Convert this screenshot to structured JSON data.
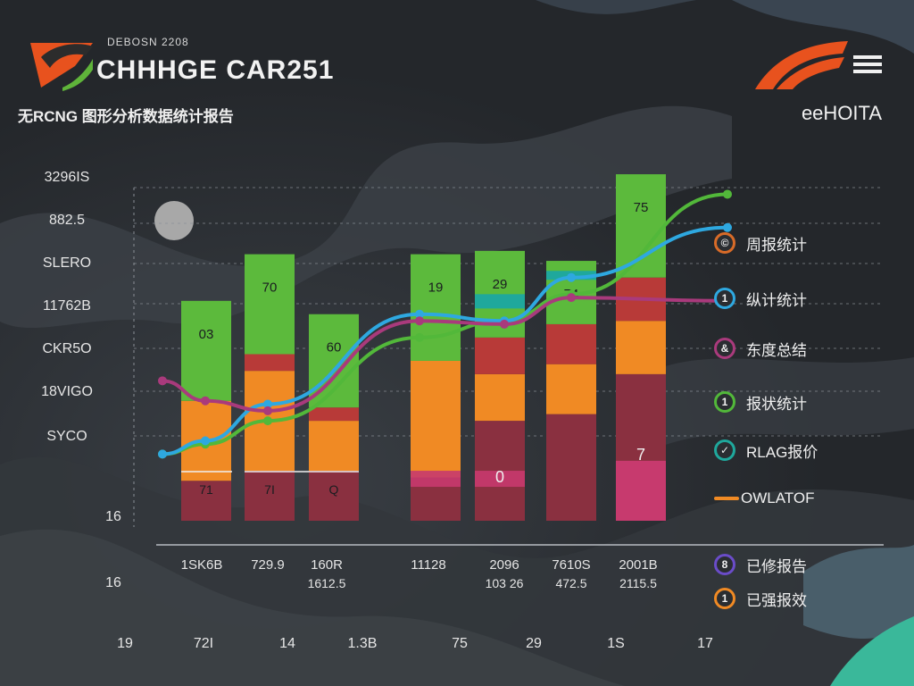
{
  "header": {
    "subheading": "DEBOSN 2208",
    "title": "CHHHGE CAR251",
    "subtitle": "无RCNG 图形分析数据统计报告",
    "brand_right": "eeHOITA",
    "logo_icon": "swoosh-logo-icon",
    "menu_icon": "hamburger-menu-icon",
    "moon_icon": "moon-circle-icon"
  },
  "colors": {
    "background": "#2b2f34",
    "green": "#5cba3c",
    "teal": "#1fa89c",
    "red": "#b83a38",
    "orange": "#f08a24",
    "darkorange": "#d86b28",
    "maroon": "#8a3040",
    "pink": "#c73a6e",
    "blue_line": "#2ea8e0",
    "magenta_line": "#a93a7c",
    "green_line": "#52b83a"
  },
  "chart_data": {
    "type": "bar",
    "stacked": true,
    "ylim": [
      0,
      100
    ],
    "grid": true,
    "legend_position": "right",
    "y_ticks": [
      "3296IS",
      "882.5",
      "SLERO",
      "11762B",
      "CKR5O",
      "18VIGO",
      "SYCO",
      "16"
    ],
    "categories": [
      "1",
      "2",
      "3",
      "4",
      "5",
      "6",
      "7"
    ],
    "x_labels_row1": [
      "1SK6B",
      "729.9",
      "160R",
      "11128",
      "2096",
      "7610S",
      "2001B"
    ],
    "x_labels_row2": [
      "",
      "",
      "1612.5",
      "",
      "103 26",
      "472.5",
      "2115.5"
    ],
    "x_labels_row3": [
      "19",
      "72I",
      "14",
      "1.3B",
      "75",
      "29",
      "1S",
      "17"
    ],
    "left_extra_label": "16",
    "bar_labels": [
      "03",
      "70",
      "60",
      "19",
      "29",
      "74",
      "75"
    ],
    "bar_inner_labels": [
      "71",
      "7I",
      "Q",
      "",
      "0",
      "",
      "7"
    ],
    "series": [
      {
        "color_key": "maroon",
        "values": [
          12,
          15,
          15,
          13,
          30,
          32,
          44
        ]
      },
      {
        "color_key": "orange",
        "values": [
          24,
          30,
          15,
          35,
          14,
          15,
          16
        ]
      },
      {
        "color_key": "red",
        "values": [
          0,
          5,
          4,
          0,
          11,
          12,
          13
        ]
      },
      {
        "color_key": "green",
        "values": [
          30,
          30,
          28,
          32,
          26,
          19,
          31
        ]
      }
    ],
    "lines": [
      {
        "color_key": "green_line",
        "values": [
          20,
          23,
          30,
          55,
          60,
          68,
          98
        ]
      },
      {
        "color_key": "blue_line",
        "values": [
          20,
          24,
          35,
          62,
          60,
          73,
          88
        ]
      },
      {
        "color_key": "magenta_line",
        "values": [
          42,
          36,
          33,
          60,
          59,
          67,
          66
        ]
      }
    ]
  },
  "legend": [
    {
      "marker": "©",
      "label": "周报统计",
      "color_key": "darkorange",
      "style": "dot"
    },
    {
      "marker": "1",
      "label": "纵计统计",
      "color_key": "blue_line",
      "style": "dot"
    },
    {
      "marker": "&",
      "label": "东度总结",
      "color_key": "magenta_line",
      "style": "dot"
    },
    {
      "marker": "1",
      "label": "报状统计",
      "color_key": "green_line",
      "style": "dot"
    },
    {
      "marker": "✓",
      "label": "RLAG报价",
      "color_key": "teal",
      "style": "dot"
    },
    {
      "marker": "",
      "label": "OWLATOF",
      "color_key": "orange",
      "style": "line"
    },
    {
      "marker": "8",
      "label": "已修报告",
      "color_key": "purple",
      "style": "dot"
    },
    {
      "marker": "1",
      "label": "已强报效",
      "color_key": "orange",
      "style": "dot"
    }
  ]
}
